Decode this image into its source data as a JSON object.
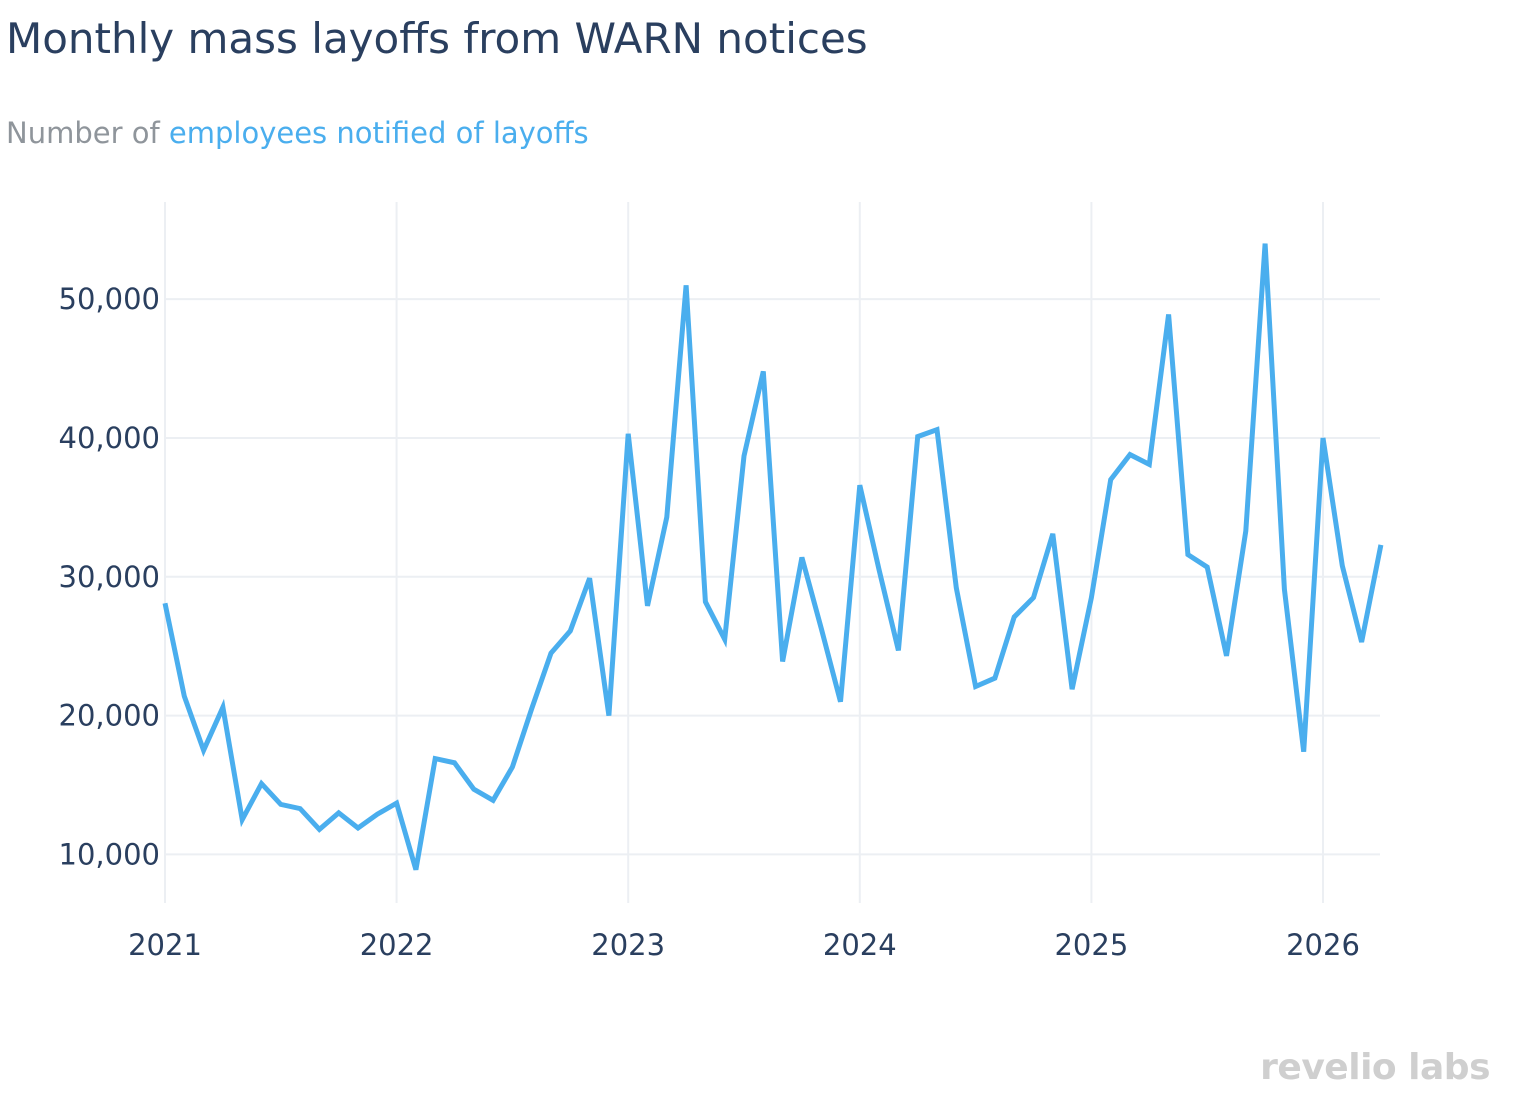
{
  "title": "Monthly mass layoffs from WARN notices",
  "subtitle": {
    "prefix": "Number of ",
    "highlight": "employees notified of layoffs"
  },
  "brand": "revelio labs",
  "colors": {
    "series": "#4aaeee",
    "grid": "#eceff3",
    "text": "#2a3f5f",
    "subtitle_prefix": "#8f959b",
    "brand": "#cfcfcf"
  },
  "chart_data": {
    "type": "line",
    "x_axis": {
      "type": "date",
      "tick_labels": [
        "2021",
        "2022",
        "2023",
        "2024",
        "2025",
        "2026"
      ],
      "range": [
        "2021-01",
        "2026-04"
      ]
    },
    "y_axis": {
      "tick_values": [
        10000,
        20000,
        30000,
        40000,
        50000
      ],
      "tick_labels": [
        "10,000",
        "20,000",
        "30,000",
        "40,000",
        "50,000"
      ],
      "range": [
        6500,
        57000
      ]
    },
    "grid": true,
    "legend": "none",
    "series": [
      {
        "color": "#4aaeee",
        "x": [
          "2021-01",
          "2021-02",
          "2021-03",
          "2021-04",
          "2021-05",
          "2021-06",
          "2021-07",
          "2021-08",
          "2021-09",
          "2021-10",
          "2021-11",
          "2021-12",
          "2022-01",
          "2022-02",
          "2022-03",
          "2022-04",
          "2022-05",
          "2022-06",
          "2022-07",
          "2022-08",
          "2022-09",
          "2022-10",
          "2022-11",
          "2022-12",
          "2023-01",
          "2023-02",
          "2023-03",
          "2023-04",
          "2023-05",
          "2023-06",
          "2023-07",
          "2023-08",
          "2023-09",
          "2023-10",
          "2023-11",
          "2023-12",
          "2024-01",
          "2024-02",
          "2024-03",
          "2024-04",
          "2024-05",
          "2024-06",
          "2024-07",
          "2024-08",
          "2024-09",
          "2024-10",
          "2024-11",
          "2024-12",
          "2025-01",
          "2025-02",
          "2025-03",
          "2025-04",
          "2025-05",
          "2025-06",
          "2025-07",
          "2025-08",
          "2025-09",
          "2025-10",
          "2025-11",
          "2025-12",
          "2026-01",
          "2026-02",
          "2026-03",
          "2026-04"
        ],
        "values": [
          28100,
          21400,
          17500,
          20600,
          12500,
          15100,
          13600,
          13300,
          11800,
          13000,
          11900,
          12900,
          13700,
          8900,
          16900,
          16600,
          14700,
          13900,
          16300,
          20500,
          24500,
          26100,
          29900,
          20000,
          40300,
          27900,
          34300,
          51000,
          28200,
          25500,
          38700,
          44800,
          23900,
          31400,
          26300,
          21000,
          36600,
          30500,
          24700,
          40100,
          40600,
          29200,
          22100,
          22700,
          27100,
          28500,
          33100,
          21900,
          28500,
          37000,
          38800,
          38100,
          48900,
          31600,
          30700,
          24300,
          33300,
          54000,
          29100,
          17400,
          40000,
          30800,
          25300,
          32300
        ]
      }
    ]
  }
}
